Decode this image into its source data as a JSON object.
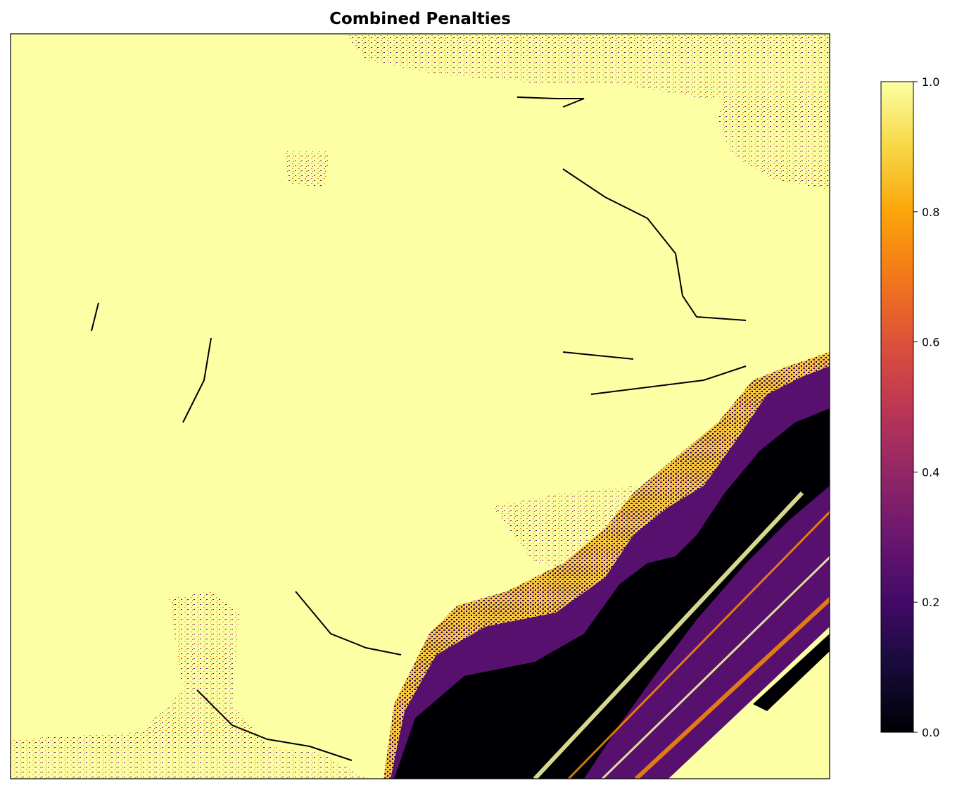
{
  "chart_data": {
    "type": "heatmap",
    "title": "Combined Penalties",
    "colormap": "inferno",
    "colors": {
      "high": "#fcffa4",
      "mid_high": "#f98e09",
      "mid": "#bc3754",
      "mid_low": "#57106e",
      "low": "#000004"
    },
    "value_range": [
      0.0,
      1.0
    ],
    "colorbar": {
      "ticks": [
        0.0,
        0.2,
        0.4,
        0.6,
        0.8,
        1.0
      ],
      "tick_labels": [
        "0.0",
        "0.2",
        "0.4",
        "0.6",
        "0.8",
        "1.0"
      ],
      "placement": "right"
    },
    "axes_ticks_visible": false,
    "grid": false,
    "description_regions": [
      {
        "region": "most of the map",
        "value": 1.0
      },
      {
        "region": "bottom-right",
        "value": 0.0
      }
    ]
  }
}
